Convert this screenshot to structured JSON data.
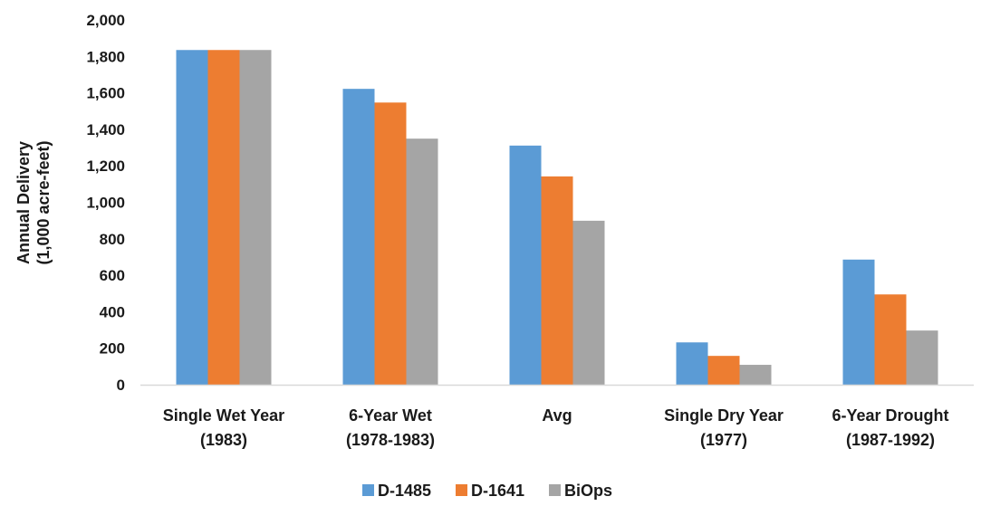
{
  "chart_data": {
    "type": "bar",
    "title": "",
    "xlabel": "",
    "ylabel": [
      "Annual Delivery",
      "(1,000 acre-feet)"
    ],
    "ylim": [
      0,
      2000
    ],
    "yticks": [
      0,
      200,
      400,
      600,
      800,
      1000,
      1200,
      1400,
      1600,
      1800,
      2000
    ],
    "ytick_labels": [
      "0",
      "200",
      "400",
      "600",
      "800",
      "1,000",
      "1,200",
      "1,400",
      "1,600",
      "1,800",
      "2,000"
    ],
    "grid": false,
    "legend_position": "bottom",
    "categories": [
      [
        "Single Wet Year",
        "(1983)"
      ],
      [
        "6-Year Wet",
        "(1978-1983)"
      ],
      [
        "Avg"
      ],
      [
        "Single Dry Year",
        "(1977)"
      ],
      [
        "6-Year Drought",
        "(1987-1992)"
      ]
    ],
    "series": [
      {
        "name": "D-1485",
        "color": "#5B9BD5",
        "values": [
          1835,
          1622,
          1311,
          232,
          686
        ]
      },
      {
        "name": "D-1641",
        "color": "#ED7D31",
        "values": [
          1835,
          1547,
          1142,
          158,
          495
        ]
      },
      {
        "name": "BiOps",
        "color": "#A5A5A5",
        "values": [
          1835,
          1349,
          899,
          109,
          297
        ]
      }
    ]
  }
}
